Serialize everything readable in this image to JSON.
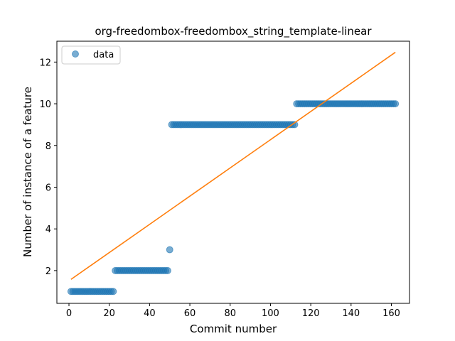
{
  "chart_data": {
    "type": "scatter",
    "title": "org-freedombox-freedombox_string_template-linear",
    "xlabel": "Commit number",
    "ylabel": "Number of instance of a feature",
    "xlim": [
      -6,
      169
    ],
    "ylim": [
      0.43,
      13.0
    ],
    "xticks": [
      0,
      20,
      40,
      60,
      80,
      100,
      120,
      140,
      160
    ],
    "yticks": [
      2,
      4,
      6,
      8,
      10,
      12
    ],
    "legend": {
      "position": "top-left",
      "entries": [
        "data"
      ]
    },
    "colors": {
      "data": "#1f77b4",
      "fit": "#ff7f0e"
    },
    "series": [
      {
        "name": "data",
        "kind": "scatter",
        "segments": [
          {
            "x_start": 1,
            "x_end": 22,
            "y": 1
          },
          {
            "x_start": 23,
            "x_end": 49,
            "y": 2
          },
          {
            "x_start": 50,
            "x_end": 50,
            "y": 3
          },
          {
            "x_start": 51,
            "x_end": 112,
            "y": 9
          },
          {
            "x_start": 113,
            "x_end": 162,
            "y": 10
          }
        ]
      },
      {
        "name": "",
        "kind": "line",
        "x": [
          1,
          162
        ],
        "y": [
          1.58,
          12.47
        ]
      }
    ]
  }
}
